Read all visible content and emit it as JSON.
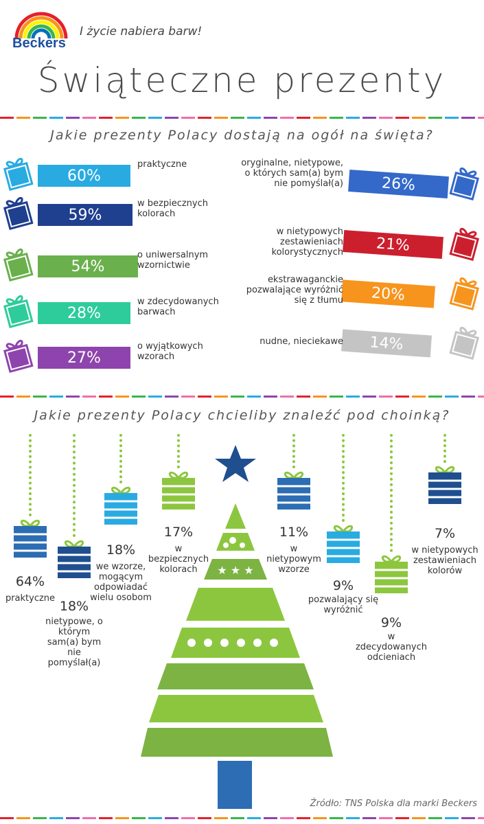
{
  "header": {
    "brand": "Beckers",
    "tagline": "I życie nabiera barw!",
    "title": "Świąteczne prezenty"
  },
  "section1": {
    "question": "Jakie prezenty Polacy dostają na ogół na święta?",
    "left": [
      {
        "pct": "60%",
        "label": "praktyczne",
        "color": "#29abe2"
      },
      {
        "pct": "59%",
        "label": "w bezpiecznych kolorach",
        "color": "#1f3f8f"
      },
      {
        "pct": "54%",
        "label": "o uniwersalnym wzornictwie",
        "color": "#6ab04c"
      },
      {
        "pct": "28%",
        "label": "w zdecydowanych barwach",
        "color": "#2ecc9a"
      },
      {
        "pct": "27%",
        "label": "o wyjątkowych wzorach",
        "color": "#8e44ad"
      }
    ],
    "right": [
      {
        "pct": "26%",
        "label": "oryginalne, nietypowe, o których sam(a) bym nie pomyślał(a)",
        "color": "#3469c9"
      },
      {
        "pct": "21%",
        "label": "w nietypowych zestawieniach kolorystycznych",
        "color": "#cc1f2e"
      },
      {
        "pct": "20%",
        "label": "ekstrawaganckie pozwalające wyróżnić się z tłumu",
        "color": "#f7941d"
      },
      {
        "pct": "14%",
        "label": "nudne, nieciekawe",
        "color": "#c4c4c4"
      }
    ]
  },
  "section2": {
    "question": "Jakie prezenty Polacy chcieliby znaleźć pod choinką?",
    "ornaments": [
      {
        "pct": "64%",
        "label": "praktyczne"
      },
      {
        "pct": "18%",
        "label": "nietypowe, o którym sam(a) bym nie pomyślał(a)"
      },
      {
        "pct": "18%",
        "label": "we wzorze, mogącym odpowiadać wielu osobom"
      },
      {
        "pct": "17%",
        "label": "w bezpiecznych kolorach"
      },
      {
        "pct": "11%",
        "label": "w nietypowym wzorze"
      },
      {
        "pct": "9%",
        "label": "pozwalający się wyróżnić"
      },
      {
        "pct": "9%",
        "label": "w zdecydowanych odcieniach"
      },
      {
        "pct": "7%",
        "label": "w nietypowych zestawieniach kolorów"
      }
    ]
  },
  "source": "Źródło: TNS Polska dla marki Beckers",
  "chart_data": [
    {
      "type": "bar",
      "title": "Jakie prezenty Polacy dostają na ogół na święta?",
      "categories": [
        "praktyczne",
        "w bezpiecznych kolorach",
        "o uniwersalnym wzornictwie",
        "w zdecydowanych barwach",
        "o wyjątkowych wzorach",
        "oryginalne, nietypowe, o których sam(a) bym nie pomyślał(a)",
        "w nietypowych zestawieniach kolorystycznych",
        "ekstrawaganckie pozwalające wyróżnić się z tłumu",
        "nudne, nieciekawe"
      ],
      "values": [
        60,
        59,
        54,
        28,
        27,
        26,
        21,
        20,
        14
      ]
    },
    {
      "type": "bar",
      "title": "Jakie prezenty Polacy chcieliby znaleźć pod choinką?",
      "categories": [
        "praktyczne",
        "nietypowe, o którym sam(a) bym nie pomyślał(a)",
        "we wzorze, mogącym odpowiadać wielu osobom",
        "w bezpiecznych kolorach",
        "w nietypowym wzorze",
        "pozwalający się wyróżnić",
        "w zdecydowanych odcieniach",
        "w nietypowych zestawieniach kolorów"
      ],
      "values": [
        64,
        18,
        18,
        17,
        11,
        9,
        9,
        7
      ]
    }
  ]
}
